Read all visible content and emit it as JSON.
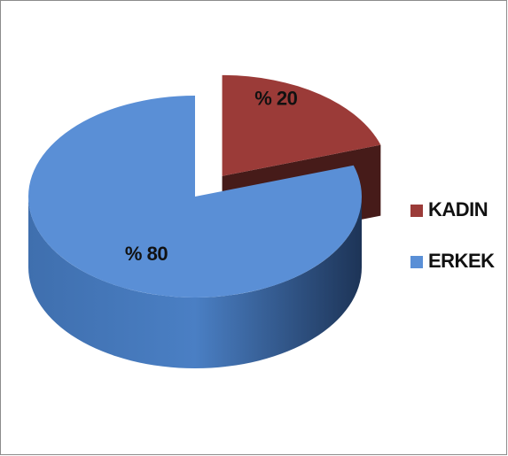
{
  "chart_data": {
    "type": "pie",
    "categories": [
      "KADIN",
      "ERKEK"
    ],
    "values": [
      20,
      80
    ],
    "value_labels": [
      "% 20",
      "% 80"
    ],
    "colors": [
      "#9b3b38",
      "#5a8fd6"
    ],
    "legend": "right"
  }
}
